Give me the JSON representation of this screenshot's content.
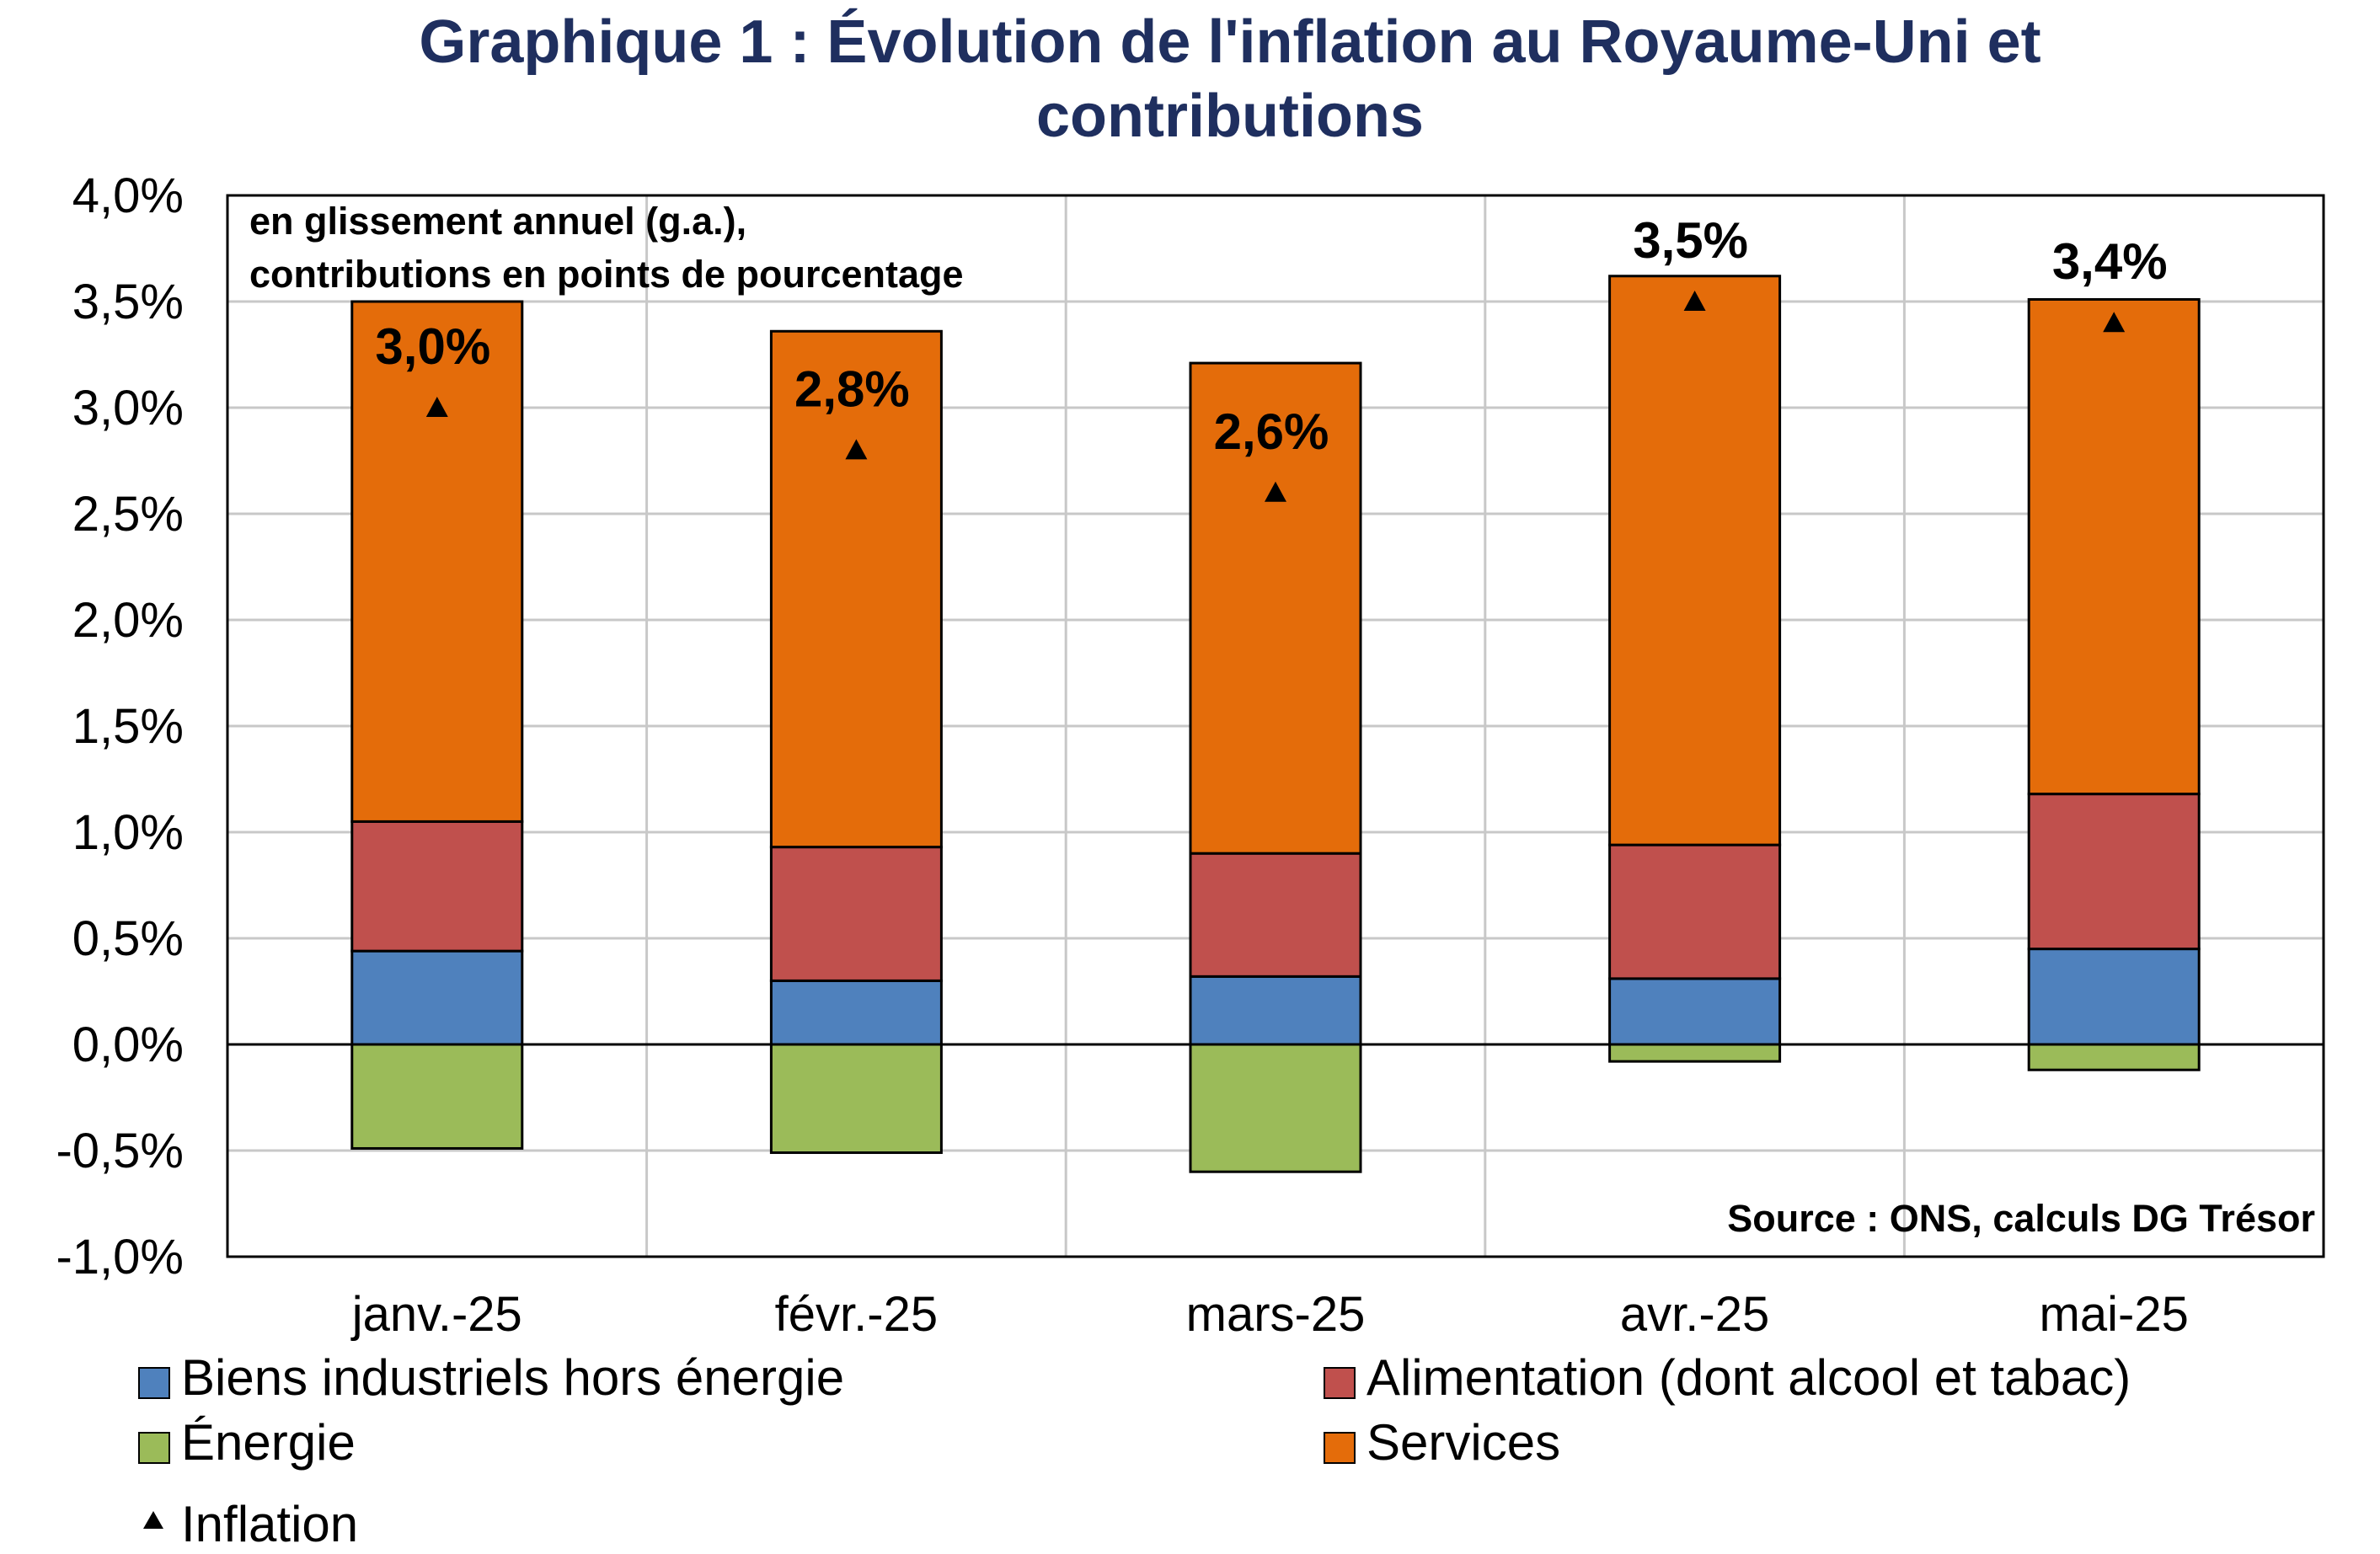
{
  "chart_data": {
    "type": "bar",
    "stacked": true,
    "title": "Graphique 1 : Évolution de l'inflation au Royaume-Uni et contributions",
    "title_lines": [
      "Graphique 1 : Évolution de l'inflation au Royaume-Uni et",
      "contributions"
    ],
    "note_lines": [
      "en glissement annuel (g.a.),",
      "contributions en points de pourcentage"
    ],
    "source": "Source : ONS, calculs DG Trésor",
    "categories": [
      "janv.-25",
      "févr.-25",
      "mars-25",
      "avr.-25",
      "mai-25"
    ],
    "ylim": [
      -1.0,
      4.0
    ],
    "yticks": [
      -1.0,
      -0.5,
      0.0,
      0.5,
      1.0,
      1.5,
      2.0,
      2.5,
      3.0,
      3.5,
      4.0
    ],
    "ytick_labels": [
      "-1,0%",
      "-0,5%",
      "0,0%",
      "0,5%",
      "1,0%",
      "1,5%",
      "2,0%",
      "2,5%",
      "3,0%",
      "3,5%",
      "4,0%"
    ],
    "grid": true,
    "legend_position": "bottom",
    "series": [
      {
        "name": "Biens industriels hors énergie",
        "color": "#4f81bd",
        "values": [
          0.44,
          0.3,
          0.32,
          0.31,
          0.45
        ]
      },
      {
        "name": "Alimentation (dont alcool et tabac)",
        "color": "#c0504d",
        "values": [
          0.61,
          0.63,
          0.58,
          0.63,
          0.73
        ]
      },
      {
        "name": "Énergie",
        "color": "#9bbb59",
        "values": [
          -0.49,
          -0.51,
          -0.6,
          -0.08,
          -0.12
        ]
      },
      {
        "name": "Services",
        "color": "#e46c0a",
        "values": [
          2.45,
          2.43,
          2.31,
          2.68,
          2.33
        ]
      }
    ],
    "line_series": {
      "name": "Inflation",
      "marker": "triangle",
      "values": [
        3.0,
        2.8,
        2.6,
        3.5,
        3.4
      ],
      "labels": [
        "3,0%",
        "2,8%",
        "2,6%",
        "3,5%",
        "3,4%"
      ]
    }
  }
}
